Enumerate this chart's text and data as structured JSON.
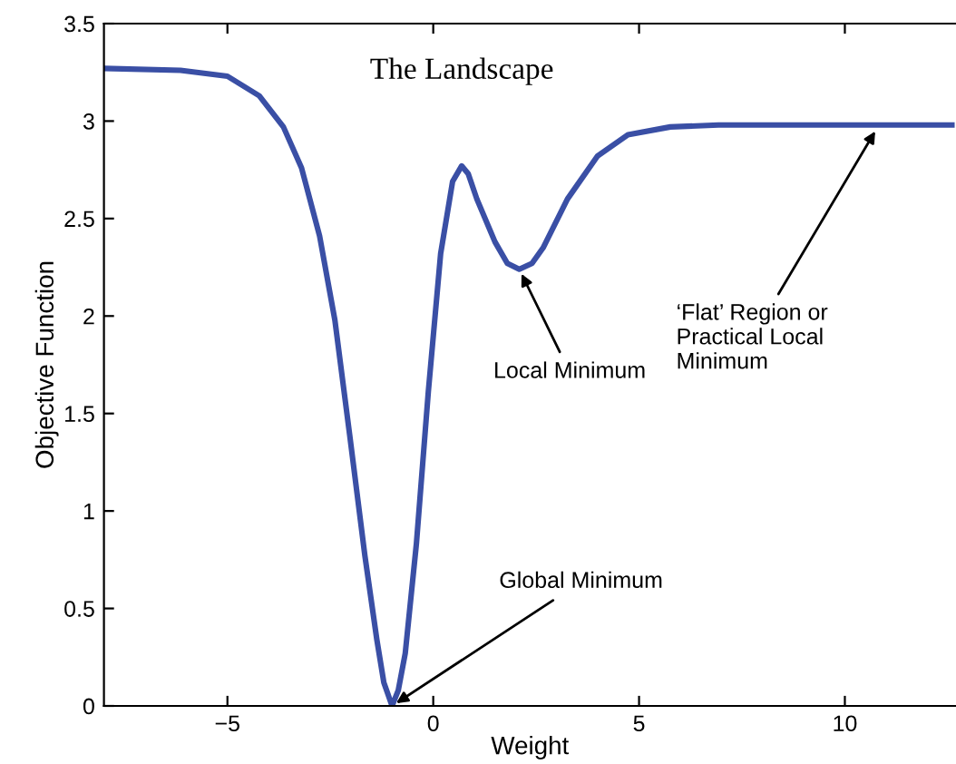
{
  "chart_data": {
    "type": "line",
    "title": "The Landscape",
    "xlabel": "Weight",
    "ylabel": "Objective Function",
    "x": [
      -8.0,
      -6.14,
      -5.0,
      -4.23,
      -3.64,
      -3.2,
      -2.76,
      -2.39,
      -2.03,
      -1.66,
      -1.37,
      -1.2,
      -1.0,
      -0.85,
      -0.68,
      -0.41,
      -0.12,
      0.18,
      0.47,
      0.69,
      0.85,
      1.06,
      1.5,
      1.8,
      2.09,
      2.4,
      2.67,
      3.26,
      3.99,
      4.73,
      5.76,
      6.93,
      10.75,
      12.6
    ],
    "series": [
      {
        "color": "#3a4fa5",
        "values": [
          3.27,
          3.26,
          3.23,
          3.13,
          2.97,
          2.76,
          2.41,
          1.98,
          1.39,
          0.77,
          0.34,
          0.12,
          0.0,
          0.08,
          0.27,
          0.83,
          1.61,
          2.32,
          2.69,
          2.77,
          2.73,
          2.6,
          2.38,
          2.27,
          2.24,
          2.27,
          2.35,
          2.6,
          2.82,
          2.93,
          2.97,
          2.98,
          2.98,
          2.98
        ]
      }
    ],
    "annotations": [
      {
        "text": "Global Minimum",
        "x": -1.0,
        "y": 0.0
      },
      {
        "text": "Local Minimum",
        "x": 2.09,
        "y": 2.24
      },
      {
        "text": "‘Flat’ Region or\nPractical Local\nMinimum",
        "x": 10.8,
        "y": 2.97
      }
    ],
    "xlim": [
      -8,
      12.7
    ],
    "ylim": [
      0,
      3.5
    ],
    "xticks": [
      {
        "value": -5,
        "label": "−5"
      },
      0,
      5,
      10
    ],
    "yticks": [
      0,
      0.5,
      1,
      1.5,
      2,
      2.5,
      3,
      3.5
    ],
    "grid": false,
    "legend": false,
    "marker": "none",
    "line_style": "solid"
  }
}
